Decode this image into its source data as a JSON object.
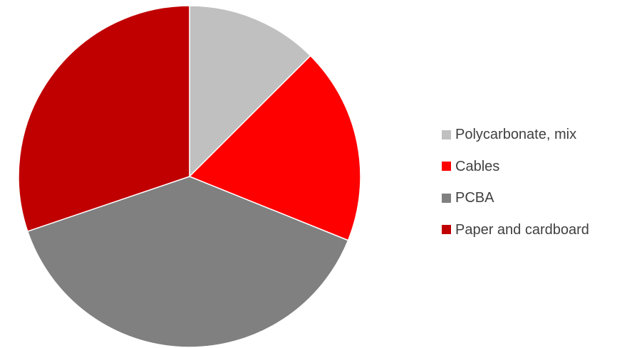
{
  "chart_data": {
    "type": "pie",
    "title": "",
    "legend_position": "right",
    "categories": [
      "Polycarbonate, mix",
      "Cables",
      "PCBA",
      "Paper and cardboard"
    ],
    "values": [
      12.5,
      18.6,
      38.7,
      30.2
    ],
    "unit": "%",
    "start_angle_deg": 0,
    "direction": "clockwise",
    "colors": [
      "#C0C0C0",
      "#FF0000",
      "#808080",
      "#C00000"
    ]
  }
}
